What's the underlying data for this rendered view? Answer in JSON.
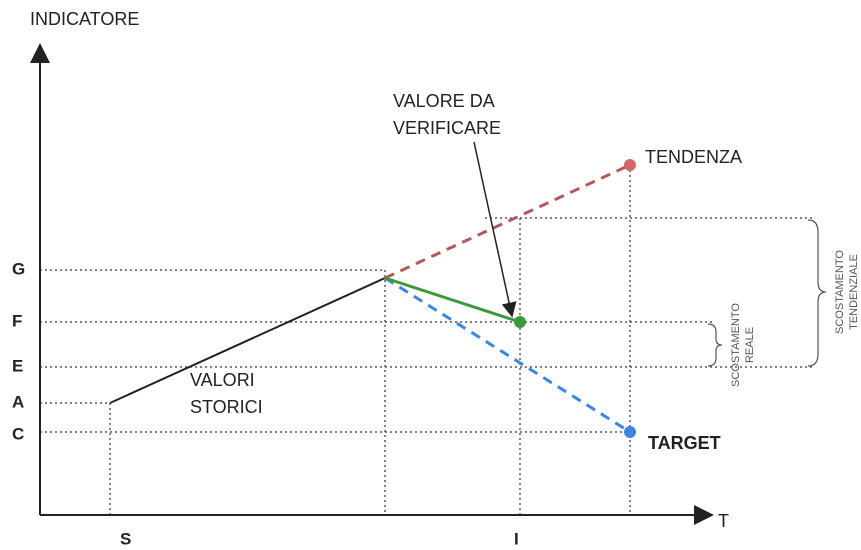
{
  "axes": {
    "y_label": "INDICATORE",
    "x_label": "T"
  },
  "y_levels": [
    "G",
    "F",
    "E",
    "A",
    "C"
  ],
  "x_levels": [
    "S",
    "I"
  ],
  "annotations": {
    "valore_da_verificare": [
      "VALORE DA",
      "VERIFICARE"
    ],
    "tendenza": "TENDENZA",
    "target": "TARGET",
    "valori_storici": [
      "VALORI",
      "STORICI"
    ],
    "scostamento_tendenziale": [
      "SCOSTAMENTO",
      "TENDENZIALE"
    ],
    "scostamento_reale": [
      "SCOSTAMENTO",
      "REALE"
    ]
  }
}
